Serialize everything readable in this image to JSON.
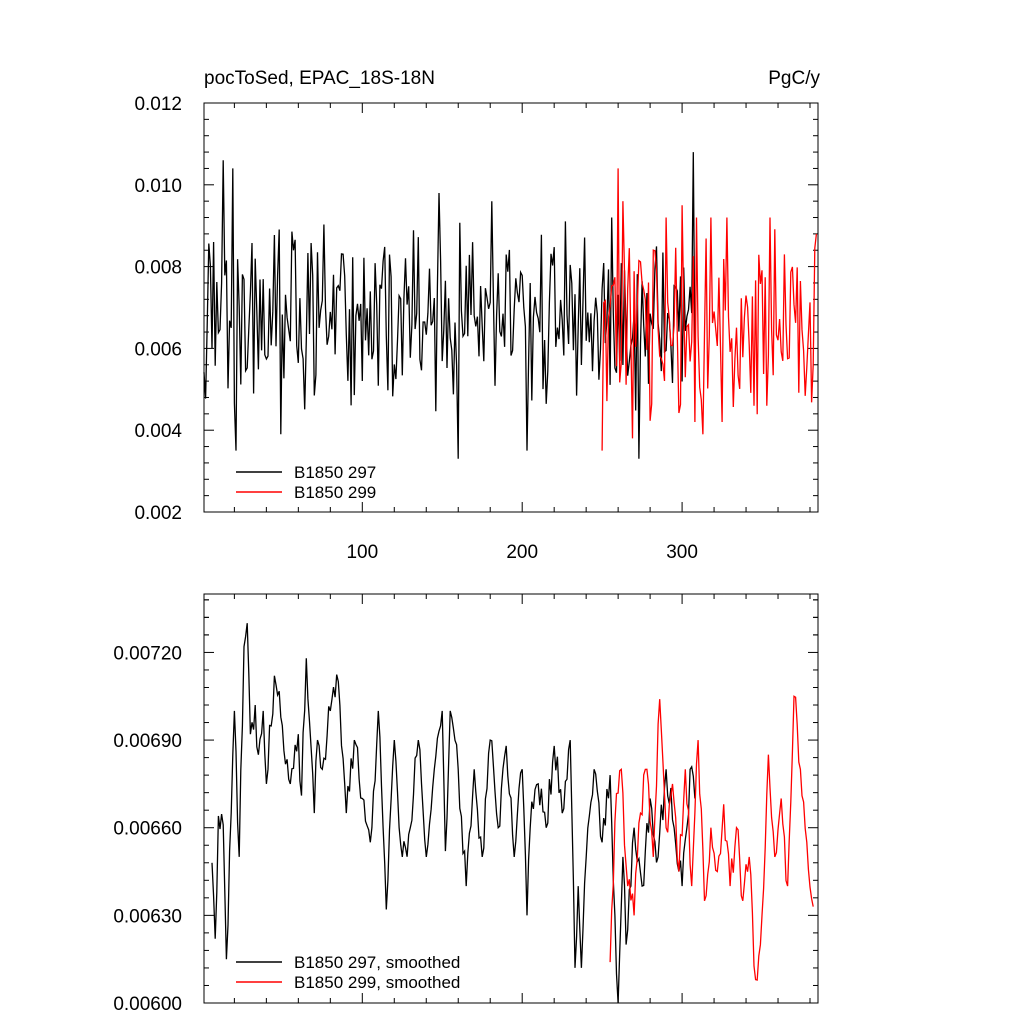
{
  "chart_data": [
    {
      "type": "line",
      "title_left": "pocToSed, EPAC_18S-18N",
      "title_right": "PgC/y",
      "x_range": [
        1,
        385
      ],
      "ylim": [
        0.002,
        0.012
      ],
      "x_tick_values": [
        100,
        200,
        300
      ],
      "x_tick_labels": [
        "100",
        "200",
        "300"
      ],
      "y_tick_values": [
        0.002,
        0.004,
        0.006,
        0.008,
        0.01,
        0.012
      ],
      "y_tick_labels": [
        "0.002",
        "0.004",
        "0.006",
        "0.008",
        "0.010",
        "0.012"
      ],
      "legend_position": "bottom-left",
      "series": [
        {
          "name": "B1850 297",
          "color": "#000000",
          "x_start": 1,
          "x_end": 308,
          "peaks": [
            [
              13,
              0.0106
            ],
            [
              19,
              0.0104
            ],
            [
              307,
              0.0108
            ],
            [
              148,
              0.0098
            ],
            [
              181,
              0.0096
            ]
          ],
          "troughs": [
            [
              21,
              0.0035
            ],
            [
              160,
              0.0033
            ],
            [
              203,
              0.0035
            ],
            [
              273,
              0.0033
            ],
            [
              49,
              0.0039
            ]
          ],
          "mean": 0.0067
        },
        {
          "name": "B1850 299",
          "color": "#ff0000",
          "x_start": 250,
          "x_end": 384,
          "peaks": [
            [
              260,
              0.0104
            ],
            [
              263,
              0.0096
            ],
            [
              300,
              0.0095
            ],
            [
              313,
              0.0095
            ],
            [
              384,
              0.0088
            ]
          ],
          "troughs": [
            [
              250,
              0.0035
            ],
            [
              269,
              0.0038
            ],
            [
              313,
              0.0039
            ],
            [
              345,
              0.0046
            ],
            [
              353,
              0.0046
            ]
          ],
          "mean": 0.0066
        }
      ]
    },
    {
      "type": "line",
      "x_range": [
        1,
        385
      ],
      "ylim": [
        0.006,
        0.0074
      ],
      "x_tick_values": [
        100,
        200,
        300
      ],
      "y_tick_values": [
        0.006,
        0.0063,
        0.0066,
        0.0069,
        0.0072
      ],
      "y_tick_labels": [
        "0.00600",
        "0.00630",
        "0.00660",
        "0.00690",
        "0.00720"
      ],
      "legend_position": "bottom-left",
      "series": [
        {
          "name": "B1850 297, smoothed",
          "color": "#000000",
          "x": [
            6,
            8,
            10,
            13,
            15,
            18,
            20,
            23,
            26,
            28,
            30,
            33,
            35,
            38,
            40,
            45,
            50,
            55,
            60,
            62,
            65,
            70,
            72,
            75,
            80,
            85,
            90,
            95,
            100,
            105,
            110,
            113,
            115,
            120,
            125,
            130,
            135,
            140,
            145,
            150,
            152,
            155,
            160,
            165,
            170,
            175,
            180,
            185,
            190,
            195,
            200,
            203,
            205,
            210,
            215,
            220,
            225,
            230,
            233,
            235,
            237,
            240,
            245,
            250,
            255,
            258,
            260,
            263,
            265,
            268,
            270,
            275,
            280,
            285,
            290,
            295,
            300,
            303,
            305,
            308
          ],
          "y": [
            0.00648,
            0.00622,
            0.00664,
            0.00661,
            0.00615,
            0.00665,
            0.007,
            0.0065,
            0.00722,
            0.0073,
            0.00692,
            0.00702,
            0.00685,
            0.007,
            0.00675,
            0.00712,
            0.00695,
            0.00675,
            0.00692,
            0.00671,
            0.00718,
            0.00665,
            0.0069,
            0.0068,
            0.007,
            0.0071,
            0.00665,
            0.0069,
            0.0067,
            0.00655,
            0.007,
            0.0066,
            0.00632,
            0.0069,
            0.0065,
            0.0066,
            0.0069,
            0.0065,
            0.0068,
            0.007,
            0.00652,
            0.007,
            0.0068,
            0.0064,
            0.0068,
            0.0065,
            0.0069,
            0.0066,
            0.00688,
            0.0065,
            0.0068,
            0.0063,
            0.0066,
            0.00675,
            0.0066,
            0.00688,
            0.00665,
            0.0069,
            0.00612,
            0.0064,
            0.00612,
            0.0065,
            0.0068,
            0.00655,
            0.00678,
            0.0063,
            0.006,
            0.0065,
            0.0062,
            0.0064,
            0.0066,
            0.0064,
            0.0067,
            0.0065,
            0.0068,
            0.0066,
            0.0064,
            0.0066,
            0.0068,
            0.0067
          ]
        },
        {
          "name": "B1850 299, smoothed",
          "color": "#ff0000",
          "x": [
            255,
            258,
            262,
            266,
            270,
            274,
            278,
            282,
            286,
            290,
            294,
            298,
            302,
            306,
            310,
            314,
            318,
            322,
            326,
            330,
            334,
            338,
            342,
            346,
            350,
            354,
            358,
            362,
            366,
            370,
            374,
            378,
            382
          ],
          "y": [
            0.00614,
            0.00662,
            0.0068,
            0.0064,
            0.0063,
            0.00665,
            0.0068,
            0.0065,
            0.00704,
            0.0066,
            0.00675,
            0.00645,
            0.0068,
            0.0064,
            0.0069,
            0.00635,
            0.0066,
            0.00645,
            0.00668,
            0.0064,
            0.0066,
            0.00635,
            0.0065,
            0.00608,
            0.0063,
            0.00685,
            0.0065,
            0.0067,
            0.0064,
            0.00705,
            0.0068,
            0.00655,
            0.00633
          ]
        }
      ]
    }
  ]
}
